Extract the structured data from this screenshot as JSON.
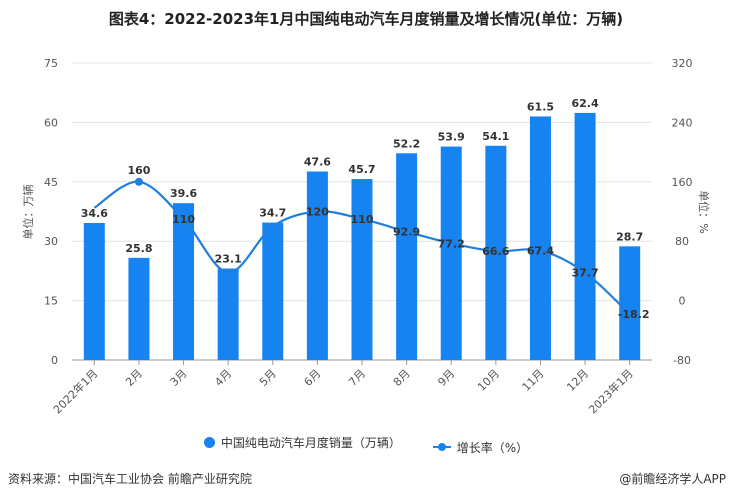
{
  "chart_data": {
    "type": "bar",
    "title": "图表4：2022-2023年1月中国纯电动汽车月度销量及增长情况(单位：万辆)",
    "categories": [
      "2022年1月",
      "2月",
      "3月",
      "4月",
      "5月",
      "6月",
      "7月",
      "8月",
      "9月",
      "10月",
      "11月",
      "12月",
      "2023年1月"
    ],
    "series": [
      {
        "name": "中国纯电动汽车月度销量（万辆）",
        "type": "bar",
        "axis": "left",
        "color": "#1683f0",
        "values": [
          34.6,
          25.8,
          39.6,
          23.1,
          34.7,
          47.6,
          45.7,
          52.2,
          53.9,
          54.1,
          61.5,
          62.4,
          28.7
        ],
        "labels": [
          "34.6",
          "25.8",
          "39.6",
          "23.1",
          "34.7",
          "47.6",
          "45.7",
          "52.2",
          "53.9",
          "54.1",
          "61.5",
          "62.4",
          "28.7"
        ]
      },
      {
        "name": "增长率（%）",
        "type": "line",
        "axis": "right",
        "color": "#1f7fe0",
        "values": [
          125,
          160,
          110,
          38,
          100,
          120,
          110,
          92.9,
          77.2,
          66.6,
          67.4,
          37.7,
          -18.2
        ],
        "labels": [
          "",
          "160",
          "110",
          "",
          "",
          "120",
          "110",
          "92.9",
          "77.2",
          "66.6",
          "67.4",
          "37.7",
          "-18.2"
        ]
      }
    ],
    "ylabel": "单位：万辆",
    "y2label": "单位：%",
    "ylim": [
      0,
      75
    ],
    "yticks": [
      "0",
      "15",
      "30",
      "45",
      "60",
      "75"
    ],
    "y2lim": [
      -80,
      320
    ],
    "y2ticks": [
      "-80",
      "0",
      "80",
      "160",
      "240",
      "320"
    ],
    "grid": true,
    "legend": "bottom"
  },
  "source": "资料来源：中国汽车工业协会 前瞻产业研究院",
  "credit": "@前瞻经济学人APP"
}
